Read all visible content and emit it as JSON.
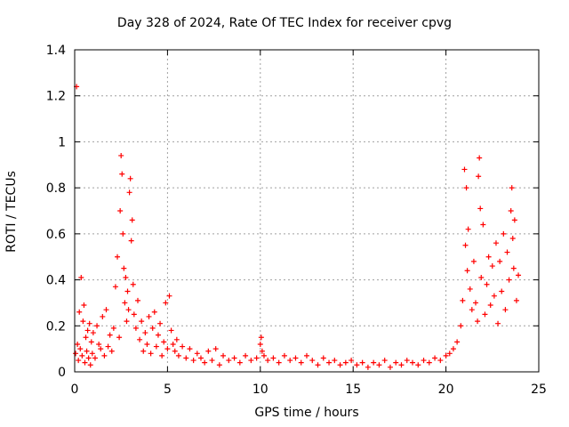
{
  "chart_data": {
    "type": "scatter",
    "title": "Day 328 of 2024, Rate Of TEC Index for receiver cpvg",
    "xlabel": "GPS time / hours",
    "ylabel": "ROTI / TECUs",
    "xlim": [
      0,
      25
    ],
    "ylim": [
      0,
      1.4
    ],
    "xticks": [
      "0",
      "5",
      "10",
      "15",
      "20",
      "25"
    ],
    "yticks": [
      "0",
      "0.2",
      "0.4",
      "0.6",
      "0.8",
      "1",
      "1.2",
      "1.4"
    ],
    "grid": true,
    "marker": "+",
    "color": "#ff0000",
    "series": [
      {
        "x": [
          0.05,
          0.1,
          0.15,
          0.2,
          0.25,
          0.3,
          0.35,
          0.4,
          0.45,
          0.5,
          0.55,
          0.6,
          0.65,
          0.7,
          0.75,
          0.8,
          0.85,
          0.9,
          0.95,
          1.0,
          1.1,
          1.2,
          1.3,
          1.4,
          1.5,
          1.6,
          1.7,
          1.8,
          1.9,
          2.0,
          2.1,
          2.2,
          2.3,
          2.4,
          2.45,
          2.5,
          2.55,
          2.6,
          2.65,
          2.7,
          2.75,
          2.8,
          2.85,
          2.9,
          2.95,
          3.0,
          3.05,
          3.1,
          3.15,
          3.2,
          3.3,
          3.4,
          3.5,
          3.6,
          3.7,
          3.8,
          3.9,
          4.0,
          4.1,
          4.2,
          4.3,
          4.4,
          4.5,
          4.6,
          4.7,
          4.8,
          4.9,
          5.0,
          5.1,
          5.2,
          5.3,
          5.4,
          5.5,
          5.6,
          5.8,
          6.0,
          6.2,
          6.4,
          6.6,
          6.8,
          7.0,
          7.2,
          7.4,
          7.6,
          7.8,
          8.0,
          8.3,
          8.6,
          8.9,
          9.2,
          9.5,
          9.8,
          10.0,
          10.05,
          10.1,
          10.2,
          10.4,
          10.7,
          11.0,
          11.3,
          11.6,
          11.9,
          12.2,
          12.5,
          12.8,
          13.1,
          13.4,
          13.7,
          14.0,
          14.3,
          14.6,
          14.9,
          15.2,
          15.5,
          15.8,
          16.1,
          16.4,
          16.7,
          17.0,
          17.3,
          17.6,
          17.9,
          18.2,
          18.5,
          18.8,
          19.1,
          19.4,
          19.7,
          20.0,
          20.2,
          20.4,
          20.6,
          20.8,
          20.9,
          21.0,
          21.05,
          21.1,
          21.15,
          21.2,
          21.3,
          21.4,
          21.5,
          21.6,
          21.7,
          21.75,
          21.8,
          21.85,
          21.9,
          22.0,
          22.1,
          22.2,
          22.3,
          22.4,
          22.5,
          22.6,
          22.7,
          22.8,
          22.9,
          23.0,
          23.1,
          23.2,
          23.3,
          23.4,
          23.5,
          23.55,
          23.6,
          23.65,
          23.7,
          23.8,
          23.9
        ],
        "y": [
          0.08,
          1.24,
          0.12,
          0.05,
          0.26,
          0.1,
          0.41,
          0.07,
          0.22,
          0.29,
          0.04,
          0.15,
          0.09,
          0.18,
          0.06,
          0.21,
          0.03,
          0.13,
          0.08,
          0.17,
          0.06,
          0.2,
          0.12,
          0.1,
          0.24,
          0.07,
          0.27,
          0.11,
          0.16,
          0.09,
          0.19,
          0.37,
          0.5,
          0.15,
          0.7,
          0.94,
          0.86,
          0.6,
          0.45,
          0.3,
          0.41,
          0.22,
          0.35,
          0.27,
          0.78,
          0.84,
          0.57,
          0.66,
          0.38,
          0.25,
          0.19,
          0.31,
          0.14,
          0.22,
          0.09,
          0.17,
          0.12,
          0.24,
          0.08,
          0.19,
          0.26,
          0.11,
          0.16,
          0.21,
          0.07,
          0.13,
          0.3,
          0.1,
          0.33,
          0.18,
          0.12,
          0.09,
          0.14,
          0.07,
          0.11,
          0.06,
          0.1,
          0.05,
          0.08,
          0.06,
          0.04,
          0.09,
          0.05,
          0.1,
          0.03,
          0.07,
          0.05,
          0.06,
          0.04,
          0.07,
          0.05,
          0.06,
          0.12,
          0.15,
          0.09,
          0.07,
          0.05,
          0.06,
          0.04,
          0.07,
          0.05,
          0.06,
          0.04,
          0.07,
          0.05,
          0.03,
          0.06,
          0.04,
          0.05,
          0.03,
          0.04,
          0.05,
          0.03,
          0.04,
          0.02,
          0.04,
          0.03,
          0.05,
          0.02,
          0.04,
          0.03,
          0.05,
          0.04,
          0.03,
          0.05,
          0.04,
          0.06,
          0.05,
          0.07,
          0.08,
          0.1,
          0.13,
          0.2,
          0.31,
          0.88,
          0.55,
          0.8,
          0.44,
          0.62,
          0.36,
          0.27,
          0.48,
          0.3,
          0.22,
          0.85,
          0.93,
          0.71,
          0.41,
          0.64,
          0.25,
          0.38,
          0.5,
          0.29,
          0.46,
          0.33,
          0.56,
          0.21,
          0.48,
          0.35,
          0.6,
          0.27,
          0.52,
          0.4,
          0.7,
          0.8,
          0.58,
          0.45,
          0.66,
          0.31,
          0.42
        ]
      }
    ]
  }
}
